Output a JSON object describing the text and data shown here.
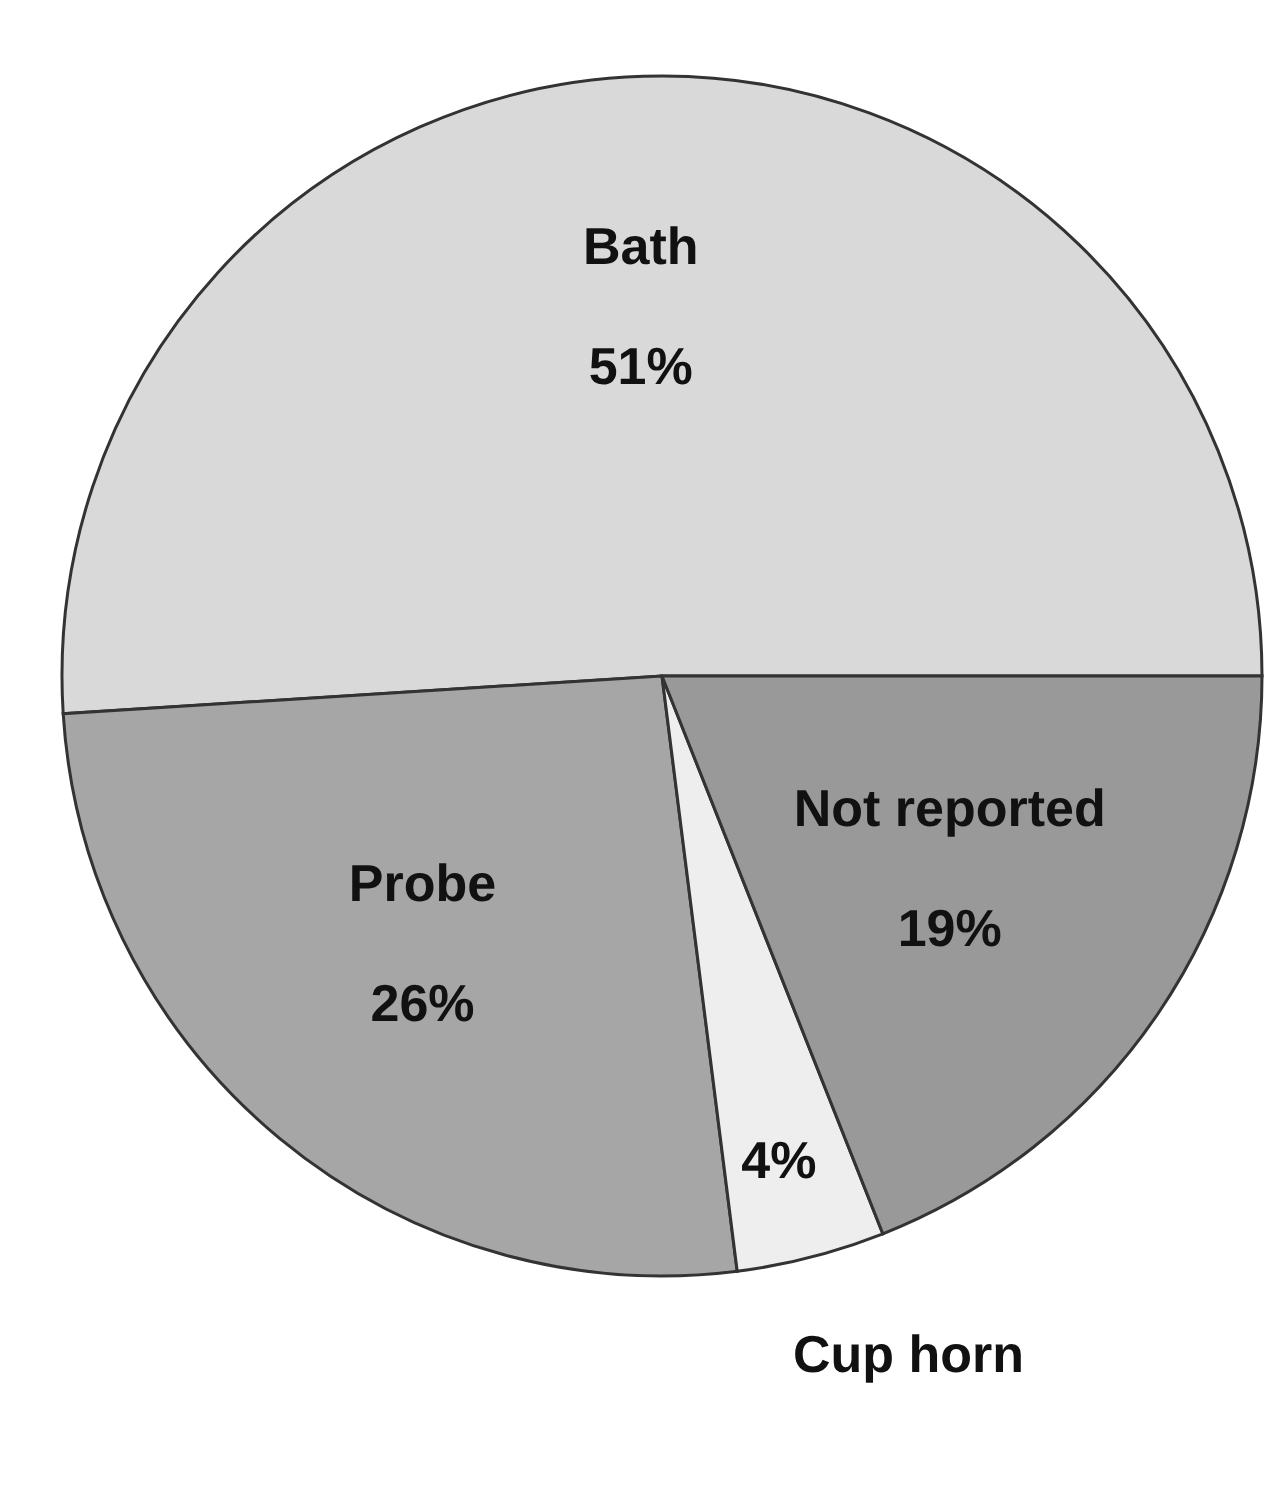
{
  "chart_data": {
    "type": "pie",
    "categories": [
      "Bath",
      "Probe",
      "Cup horn",
      "Not reported"
    ],
    "values": [
      51,
      26,
      4,
      19
    ],
    "value_labels": [
      "51%",
      "26%",
      "4%",
      "19%"
    ],
    "colors": [
      "#d9d9d9",
      "#a6a6a6",
      "#eeeeee",
      "#999999"
    ]
  }
}
